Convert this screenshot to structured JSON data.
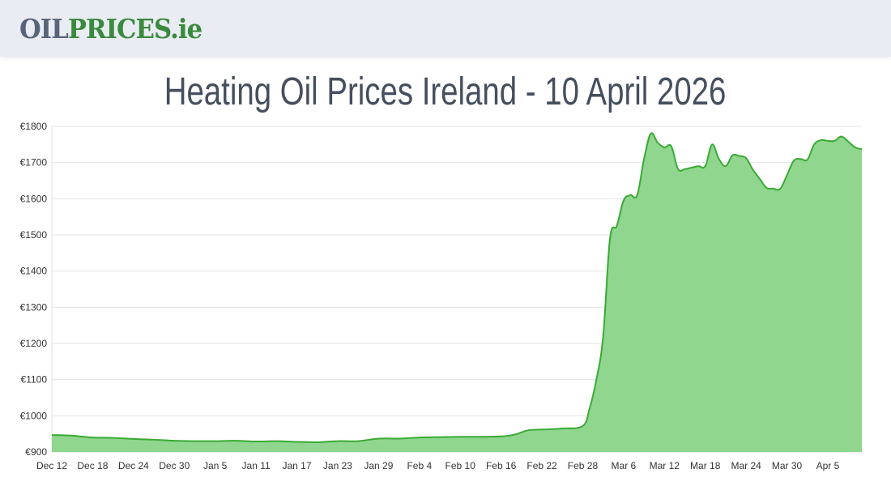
{
  "header": {
    "logo_part1": "OIL",
    "logo_part2": "PRICES.ie"
  },
  "page_title": "Heating Oil Prices Ireland - 10 April 2026",
  "colors": {
    "line": "#3aaa35",
    "fill": "#90d68f",
    "logo_gray": "#5a6478",
    "logo_green": "#3a8a3d"
  },
  "chart_data": {
    "type": "area",
    "title": "",
    "xlabel": "",
    "ylabel": "",
    "ylim": [
      900,
      1800
    ],
    "xlim": [
      "2025-12-12",
      "2026-04-10"
    ],
    "grid": true,
    "y_ticks": [
      "€900",
      "€1000",
      "€1100",
      "€1200",
      "€1300",
      "€1400",
      "€1500",
      "€1600",
      "€1700",
      "€1800"
    ],
    "y_tick_values": [
      900,
      1000,
      1100,
      1200,
      1300,
      1400,
      1500,
      1600,
      1700,
      1800
    ],
    "x_ticks": [
      {
        "label": "Dec 12",
        "date": "2025-12-12"
      },
      {
        "label": "Dec 18",
        "date": "2025-12-18"
      },
      {
        "label": "Dec 24",
        "date": "2025-12-24"
      },
      {
        "label": "Dec 30",
        "date": "2025-12-30"
      },
      {
        "label": "Jan 5",
        "date": "2026-01-05"
      },
      {
        "label": "Jan 11",
        "date": "2026-01-11"
      },
      {
        "label": "Jan 17",
        "date": "2026-01-17"
      },
      {
        "label": "Jan 23",
        "date": "2026-01-23"
      },
      {
        "label": "Jan 29",
        "date": "2026-01-29"
      },
      {
        "label": "Feb 4",
        "date": "2026-02-04"
      },
      {
        "label": "Feb 10",
        "date": "2026-02-10"
      },
      {
        "label": "Feb 16",
        "date": "2026-02-16"
      },
      {
        "label": "Feb 22",
        "date": "2026-02-22"
      },
      {
        "label": "Feb 28",
        "date": "2026-02-28"
      },
      {
        "label": "Mar 6",
        "date": "2026-03-06"
      },
      {
        "label": "Mar 12",
        "date": "2026-03-12"
      },
      {
        "label": "Mar 18",
        "date": "2026-03-18"
      },
      {
        "label": "Mar 24",
        "date": "2026-03-24"
      },
      {
        "label": "Mar 30",
        "date": "2026-03-30"
      },
      {
        "label": "Apr 5",
        "date": "2026-04-05"
      }
    ],
    "series": [
      {
        "x": [
          "2025-12-12",
          "2025-12-15",
          "2025-12-18",
          "2025-12-21",
          "2025-12-24",
          "2025-12-27",
          "2025-12-30",
          "2026-01-02",
          "2026-01-05",
          "2026-01-08",
          "2026-01-11",
          "2026-01-14",
          "2026-01-17",
          "2026-01-20",
          "2026-01-23",
          "2026-01-26",
          "2026-01-29",
          "2026-02-01",
          "2026-02-04",
          "2026-02-07",
          "2026-02-10",
          "2026-02-13",
          "2026-02-16",
          "2026-02-18",
          "2026-02-20",
          "2026-02-22",
          "2026-02-25",
          "2026-02-28",
          "2026-03-01",
          "2026-03-02",
          "2026-03-03",
          "2026-03-04",
          "2026-03-05",
          "2026-03-06",
          "2026-03-07",
          "2026-03-08",
          "2026-03-09",
          "2026-03-10",
          "2026-03-11",
          "2026-03-12",
          "2026-03-13",
          "2026-03-14",
          "2026-03-15",
          "2026-03-16",
          "2026-03-17",
          "2026-03-18",
          "2026-03-19",
          "2026-03-20",
          "2026-03-21",
          "2026-03-22",
          "2026-03-23",
          "2026-03-24",
          "2026-03-25",
          "2026-03-26",
          "2026-03-27",
          "2026-03-28",
          "2026-03-29",
          "2026-03-30",
          "2026-03-31",
          "2026-04-01",
          "2026-04-02",
          "2026-04-03",
          "2026-04-04",
          "2026-04-05",
          "2026-04-06",
          "2026-04-07",
          "2026-04-08",
          "2026-04-09",
          "2026-04-10"
        ],
        "y": [
          947,
          945,
          940,
          939,
          936,
          934,
          931,
          930,
          930,
          931,
          929,
          930,
          928,
          927,
          930,
          930,
          937,
          937,
          940,
          941,
          942,
          942,
          943,
          948,
          960,
          962,
          965,
          972,
          1020,
          1100,
          1220,
          1490,
          1525,
          1595,
          1610,
          1610,
          1710,
          1780,
          1755,
          1742,
          1745,
          1682,
          1682,
          1686,
          1690,
          1690,
          1750,
          1710,
          1690,
          1720,
          1718,
          1712,
          1680,
          1655,
          1630,
          1628,
          1627,
          1665,
          1705,
          1710,
          1708,
          1750,
          1762,
          1760,
          1760,
          1772,
          1758,
          1742,
          1737
        ]
      }
    ]
  }
}
